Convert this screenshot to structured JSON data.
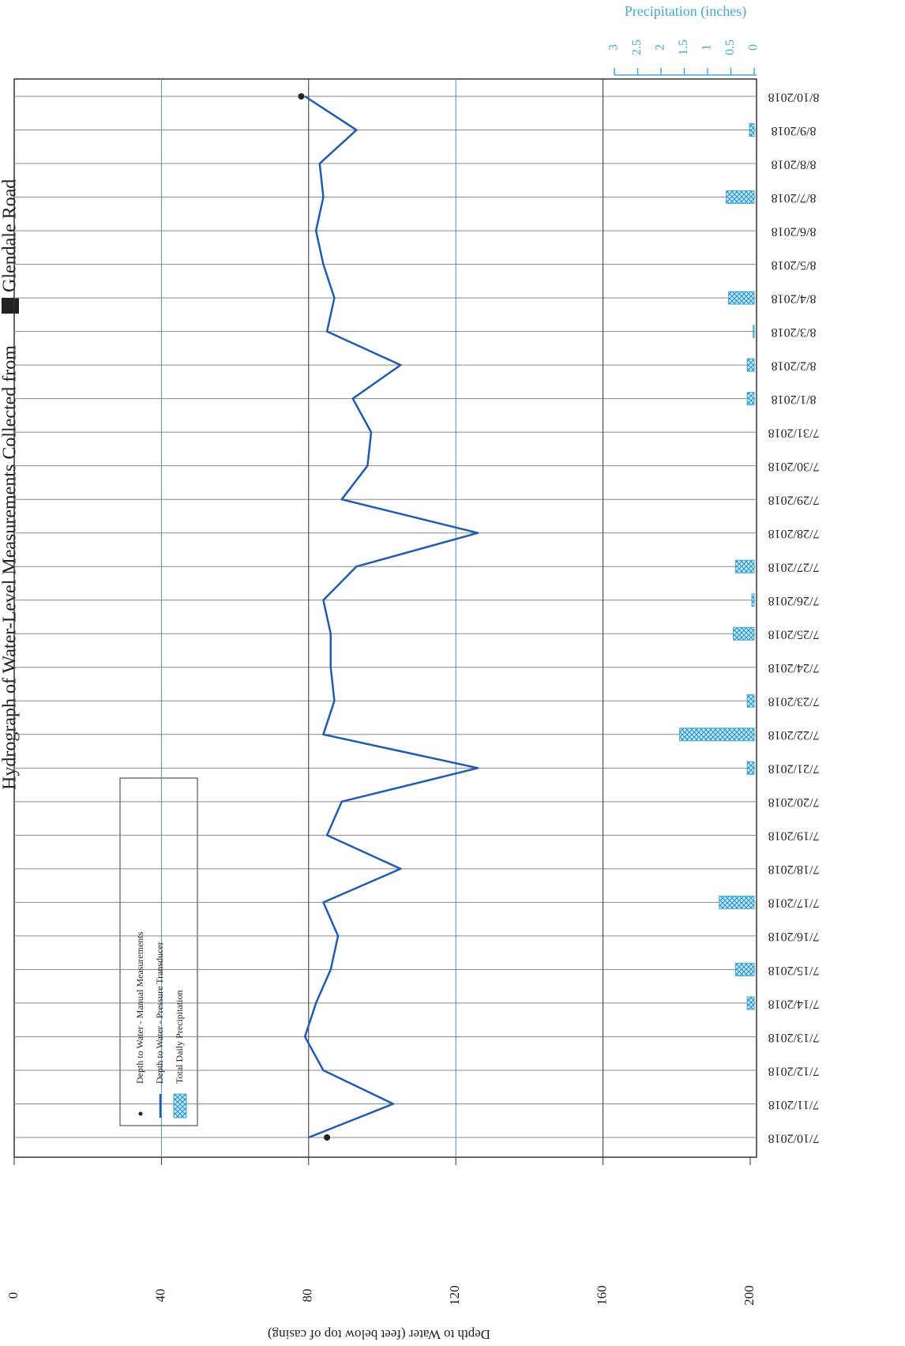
{
  "chart_data": {
    "type": "combo",
    "title": "Hydrograph of Water-Level Measurements Collected from",
    "title_end": "Glendale Road",
    "categories": [
      "7/10/2018",
      "7/11/2018",
      "7/12/2018",
      "7/13/2018",
      "7/14/2018",
      "7/15/2018",
      "7/16/2018",
      "7/17/2018",
      "7/18/2018",
      "7/19/2018",
      "7/20/2018",
      "7/21/2018",
      "7/22/2018",
      "7/23/2018",
      "7/24/2018",
      "7/25/2018",
      "7/26/2018",
      "7/27/2018",
      "7/28/2018",
      "7/29/2018",
      "7/30/2018",
      "7/31/2018",
      "8/1/2018",
      "8/2/2018",
      "8/3/2018",
      "8/4/2018",
      "8/5/2018",
      "8/6/2018",
      "8/7/2018",
      "8/8/2018",
      "8/9/2018",
      "8/10/2018"
    ],
    "ylabel": "Depth to Water (feet below top of casing)",
    "ylim": [
      0,
      200
    ],
    "yticks": [
      0,
      40,
      80,
      120,
      160,
      200
    ],
    "y2label": "Precipitation (inches)",
    "y2lim": [
      0,
      3
    ],
    "y2ticks": [
      0,
      0.5,
      1,
      1.5,
      2,
      2.5,
      3
    ],
    "grid": true,
    "series": [
      {
        "name": "Depth to Water - Manual Measurements",
        "type": "scatter",
        "color": "#222222",
        "values": [
          85,
          null,
          null,
          null,
          null,
          null,
          null,
          null,
          null,
          null,
          null,
          null,
          null,
          null,
          null,
          null,
          null,
          null,
          null,
          null,
          null,
          null,
          null,
          null,
          null,
          null,
          null,
          null,
          null,
          null,
          null,
          78
        ]
      },
      {
        "name": "Depth to Water - Pressure Transducer",
        "type": "line",
        "color": "#1f5cb0",
        "values": [
          80,
          103,
          84,
          79,
          82,
          86,
          88,
          84,
          105,
          85,
          89,
          126,
          84,
          87,
          86,
          86,
          84,
          93,
          126,
          89,
          96,
          97,
          92,
          105,
          85,
          87,
          84,
          82,
          84,
          83,
          93,
          79
        ]
      },
      {
        "name": "Total Daily Precipitation",
        "type": "bar",
        "axis": "y2",
        "color": "#3fa9d9",
        "values": [
          null,
          null,
          null,
          null,
          0.15,
          0.4,
          null,
          0.75,
          null,
          null,
          null,
          0.15,
          1.6,
          0.15,
          null,
          0.45,
          0.05,
          0.4,
          null,
          null,
          null,
          null,
          0.15,
          0.15,
          0.02,
          0.55,
          null,
          null,
          0.6,
          null,
          0.1,
          null
        ]
      }
    ]
  }
}
